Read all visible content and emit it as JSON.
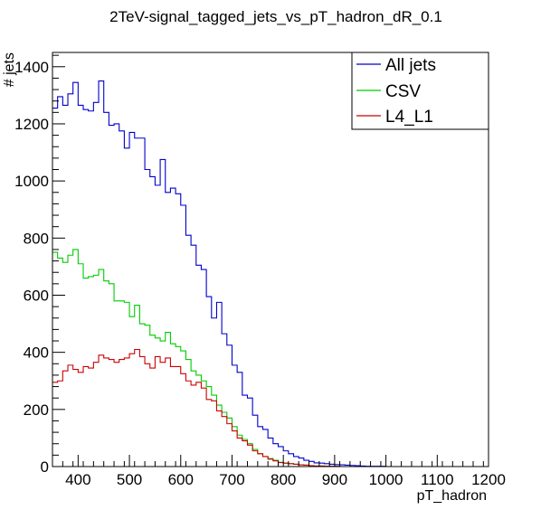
{
  "chart_data": {
    "type": "step-histogram",
    "title": "2TeV-signal_tagged_jets_vs_pT_hadron_dR_0.1",
    "xlabel": "pT_hadron",
    "ylabel": "# jets",
    "xlim": [
      350,
      1200
    ],
    "ylim": [
      0,
      1450
    ],
    "bin_width": 10,
    "x_ticks": [
      400,
      500,
      600,
      700,
      800,
      900,
      1000,
      1100,
      1200
    ],
    "y_ticks": [
      0,
      200,
      400,
      600,
      800,
      1000,
      1200,
      1400
    ],
    "legend": "top-right",
    "series": [
      {
        "name": "All jets",
        "color": "#0000cc",
        "values": [
          1255,
          1295,
          1265,
          1305,
          1345,
          1265,
          1250,
          1245,
          1275,
          1350,
          1240,
          1195,
          1200,
          1175,
          1115,
          1170,
          1150,
          1150,
          1040,
          1015,
          985,
          1075,
          960,
          975,
          955,
          915,
          810,
          775,
          705,
          690,
          595,
          520,
          575,
          465,
          425,
          355,
          330,
          250,
          240,
          180,
          140,
          130,
          100,
          80,
          70,
          55,
          45,
          35,
          30,
          22,
          18,
          13,
          12,
          10,
          8,
          7,
          6,
          5,
          4,
          3,
          2,
          1,
          1,
          1,
          1,
          0,
          0,
          0,
          0,
          0,
          0,
          0,
          0,
          0,
          0,
          0,
          0,
          0,
          0,
          0,
          0,
          0,
          0,
          0,
          0
        ]
      },
      {
        "name": "CSV",
        "color": "#00cc00",
        "values": [
          750,
          730,
          715,
          740,
          760,
          710,
          660,
          665,
          670,
          690,
          650,
          640,
          580,
          580,
          575,
          525,
          565,
          500,
          495,
          460,
          450,
          440,
          470,
          430,
          420,
          405,
          375,
          335,
          320,
          300,
          280,
          250,
          215,
          190,
          170,
          140,
          110,
          95,
          80,
          60,
          45,
          35,
          28,
          22,
          15,
          12,
          10,
          8,
          6,
          5,
          3,
          2,
          2,
          1,
          1,
          1,
          0,
          0,
          0,
          0,
          0,
          0,
          0,
          0,
          0,
          0,
          0,
          0,
          0,
          0,
          0,
          0,
          0,
          0,
          0,
          0,
          0,
          0,
          0,
          0,
          0,
          0,
          0,
          0,
          0
        ]
      },
      {
        "name": "L4_L1",
        "color": "#cc0000",
        "values": [
          295,
          300,
          335,
          355,
          340,
          330,
          350,
          345,
          365,
          390,
          380,
          375,
          365,
          375,
          380,
          395,
          410,
          385,
          360,
          345,
          385,
          365,
          380,
          350,
          350,
          325,
          300,
          285,
          295,
          275,
          235,
          230,
          195,
          175,
          150,
          125,
          100,
          90,
          75,
          55,
          45,
          35,
          26,
          20,
          14,
          12,
          10,
          8,
          6,
          5,
          3,
          2,
          2,
          1,
          1,
          1,
          0,
          0,
          0,
          0,
          0,
          0,
          0,
          0,
          0,
          0,
          0,
          0,
          0,
          0,
          0,
          0,
          0,
          0,
          0,
          0,
          0,
          0,
          0,
          0,
          0,
          0,
          0,
          0,
          0
        ]
      }
    ]
  }
}
